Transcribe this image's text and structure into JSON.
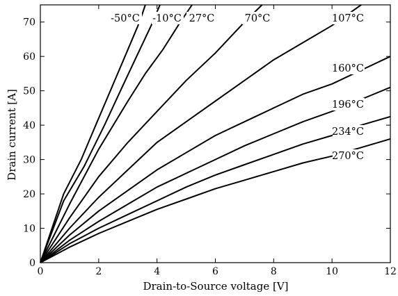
{
  "chart_data": {
    "type": "line",
    "xlabel": "Drain-to-Source voltage [V]",
    "ylabel": "Drain current [A]",
    "xlim": [
      0,
      12
    ],
    "ylim": [
      0,
      75
    ],
    "xticks": [
      "0",
      "2",
      "4",
      "6",
      "8",
      "10",
      "12"
    ],
    "yticks": [
      "0",
      "10",
      "20",
      "30",
      "40",
      "50",
      "60",
      "70"
    ],
    "grid": false,
    "legend": "none",
    "line_color": "#000000",
    "series": [
      {
        "name": "-50°C",
        "x": [
          0,
          0.8,
          1.4,
          2.0,
          2.6,
          3.0,
          3.4,
          3.6
        ],
        "y": [
          0,
          20,
          30,
          42,
          54,
          62,
          70,
          75
        ]
      },
      {
        "name": "-10°C",
        "x": [
          0,
          0.8,
          1.5,
          2.2,
          2.8,
          3.3,
          3.8,
          4.1
        ],
        "y": [
          0,
          18,
          28,
          40,
          51,
          60,
          69,
          75
        ]
      },
      {
        "name": "27°C",
        "x": [
          0,
          1.0,
          2.0,
          3.0,
          3.6,
          4.2,
          4.8,
          5.2
        ],
        "y": [
          0,
          17,
          33,
          47,
          55,
          62,
          70,
          75
        ]
      },
      {
        "name": "70°C",
        "x": [
          0,
          1.0,
          2.0,
          3.0,
          4.0,
          5.0,
          6.0,
          7.0,
          7.6
        ],
        "y": [
          0,
          13,
          25,
          35,
          44,
          53,
          61,
          70,
          75
        ]
      },
      {
        "name": "107°C",
        "x": [
          0,
          1.0,
          2.0,
          3.0,
          4.0,
          5.0,
          6.0,
          7.0,
          8.0,
          9.0,
          10.0,
          11.0
        ],
        "y": [
          0,
          10,
          19,
          27,
          35,
          41,
          47,
          53,
          59,
          64,
          69,
          75
        ]
      },
      {
        "name": "160°C",
        "x": [
          0,
          1.0,
          2.0,
          3.0,
          4.0,
          5.0,
          6.0,
          7.0,
          8.0,
          9.0,
          10.0,
          11.0,
          12.0
        ],
        "y": [
          0,
          8,
          15,
          21,
          27,
          32,
          37,
          41,
          45,
          49,
          52,
          56,
          60
        ]
      },
      {
        "name": "196°C",
        "x": [
          0,
          1.0,
          2.0,
          3.0,
          4.0,
          5.0,
          6.0,
          7.0,
          8.0,
          9.0,
          10.0,
          11.0,
          12.0
        ],
        "y": [
          0,
          6.5,
          12,
          17,
          22,
          26,
          30,
          34,
          37.5,
          41,
          44,
          47.5,
          51
        ]
      },
      {
        "name": "234°C",
        "x": [
          0,
          1.0,
          2.0,
          3.0,
          4.0,
          5.0,
          6.0,
          7.0,
          8.0,
          9.0,
          10.0,
          11.0,
          12.0
        ],
        "y": [
          0,
          5.5,
          10,
          14,
          18,
          22,
          25.5,
          28.5,
          31.5,
          34.5,
          37,
          40,
          42.5
        ]
      },
      {
        "name": "270°C",
        "x": [
          0,
          1.0,
          2.0,
          3.0,
          4.0,
          5.0,
          6.0,
          7.0,
          8.0,
          9.0,
          10.0,
          11.0,
          12.0
        ],
        "y": [
          0,
          4.5,
          8.5,
          12,
          15.5,
          18.5,
          21.5,
          24,
          26.5,
          29,
          31,
          33.5,
          36
        ]
      }
    ]
  }
}
